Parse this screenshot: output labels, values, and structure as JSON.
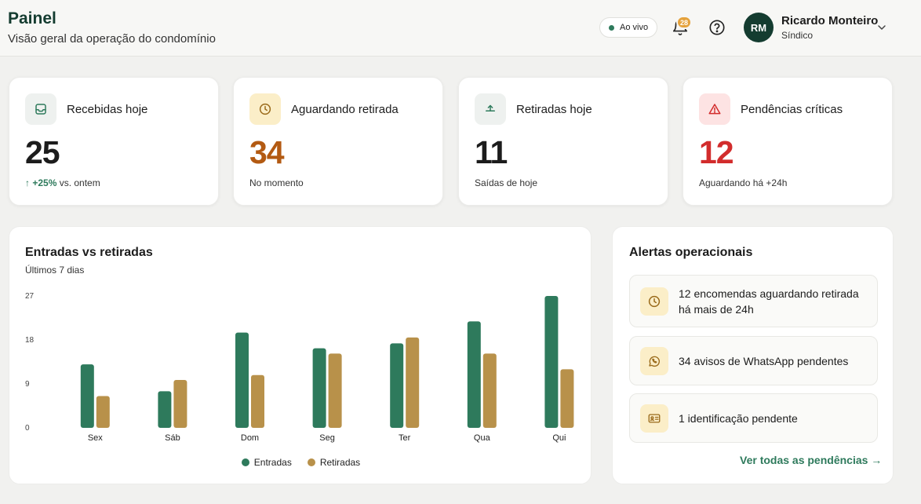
{
  "header": {
    "title": "Painel",
    "subtitle": "Visão geral da operação do condomínio",
    "live_label": "Ao vivo",
    "notification_count": "28",
    "user": {
      "initials": "RM",
      "name": "Ricardo Monteiro",
      "role": "Síndico"
    }
  },
  "stats": [
    {
      "label": "Recebidas hoje",
      "value": "25",
      "trend": "↑ +25%",
      "sub": "vs. ontem",
      "icon": "inbox-icon",
      "value_color": "#1c1c1c",
      "icon_bg": "#eef1ef"
    },
    {
      "label": "Aguardando retirada",
      "value": "34",
      "sub": "No momento",
      "icon": "clock-icon",
      "value_color": "#b35a12",
      "icon_bg": "#fbeec8"
    },
    {
      "label": "Retiradas hoje",
      "value": "11",
      "sub": "Saídas de hoje",
      "icon": "pickup-icon",
      "value_color": "#1c1c1c",
      "icon_bg": "#eef1ef"
    },
    {
      "label": "Pendências críticas",
      "value": "12",
      "sub": "Aguardando há +24h",
      "icon": "alert-triangle-icon",
      "value_color": "#d22c2c",
      "icon_bg": "#fde3e3"
    }
  ],
  "chart": {
    "title": "Entradas vs retiradas",
    "subtitle": "Últimos 7 dias"
  },
  "chart_data": {
    "type": "bar",
    "categories": [
      "Sex",
      "Sáb",
      "Dom",
      "Seg",
      "Ter",
      "Qua",
      "Qui"
    ],
    "series": [
      {
        "name": "Entradas",
        "values": [
          13,
          7.5,
          19.5,
          16.3,
          17.3,
          21.8,
          27
        ],
        "color": "#2e7a5c"
      },
      {
        "name": "Retiradas",
        "values": [
          6.5,
          9.8,
          10.8,
          15.2,
          18.5,
          15.2,
          12
        ],
        "color": "#b8914a"
      }
    ],
    "yticks": [
      0,
      9,
      18,
      27
    ],
    "ylim": [
      0,
      27
    ],
    "legend": "bottom-center"
  },
  "alerts": {
    "title": "Alertas operacionais",
    "items": [
      {
        "text": "12 encomendas aguardando retirada há mais de 24h",
        "icon": "clock-icon"
      },
      {
        "text": "34 avisos de WhatsApp pendentes",
        "icon": "whatsapp-icon"
      },
      {
        "text": "1 identificação pendente",
        "icon": "id-card-icon"
      }
    ],
    "link": "Ver todas as pendências →"
  },
  "colors": {
    "accent": "#2e7a5c",
    "dark": "#143c30",
    "warning": "#e5a23c",
    "danger": "#d22c2c"
  }
}
